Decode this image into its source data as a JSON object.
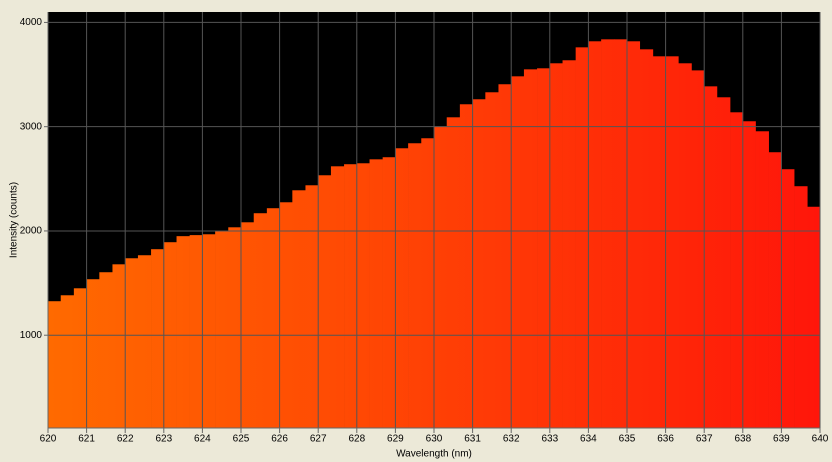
{
  "chart_data": {
    "type": "histogram",
    "xlabel": "Wavelength (nm)",
    "ylabel": "Intensity (counts)",
    "bins": [
      620,
      620.33,
      620.67,
      621,
      621.33,
      621.67,
      622,
      622.33,
      622.67,
      623,
      623.33,
      623.67,
      624,
      624.33,
      624.67,
      625,
      625.33,
      625.67,
      626,
      626.33,
      626.67,
      627,
      627.33,
      627.67,
      628,
      628.33,
      628.67,
      629,
      629.33,
      629.67,
      630,
      630.33,
      630.67,
      631,
      631.33,
      631.67,
      632,
      632.33,
      632.67,
      633,
      633.33,
      633.67,
      634,
      634.33,
      634.67,
      635,
      635.33,
      635.67,
      636,
      636.33,
      636.67,
      637,
      637.33,
      637.67,
      638,
      638.33,
      638.67,
      639,
      639.33,
      639.67,
      640
    ],
    "values": [
      1326,
      1383,
      1450,
      1537,
      1604,
      1680,
      1738,
      1767,
      1825,
      1892,
      1950,
      1960,
      1968,
      1997,
      2035,
      2083,
      2170,
      2218,
      2275,
      2390,
      2438,
      2534,
      2620,
      2640,
      2649,
      2687,
      2707,
      2793,
      2841,
      2889,
      3004,
      3090,
      3215,
      3263,
      3330,
      3407,
      3483,
      3550,
      3560,
      3608,
      3637,
      3761,
      3819,
      3838,
      3838,
      3819,
      3742,
      3675,
      3675,
      3608,
      3540,
      3387,
      3282,
      3138,
      3052,
      2956,
      2755,
      2592,
      2429,
      2232
    ],
    "color_start": "#ff6a00",
    "color_end": "#ff160a",
    "xlim": [
      620,
      640
    ],
    "ylim": [
      110,
      4100
    ],
    "xticks": [
      620,
      621,
      622,
      623,
      624,
      625,
      626,
      627,
      628,
      629,
      630,
      631,
      632,
      633,
      634,
      635,
      636,
      637,
      638,
      639,
      640
    ],
    "yticks": [
      1000,
      2000,
      3000,
      4000
    ],
    "grid": true
  }
}
